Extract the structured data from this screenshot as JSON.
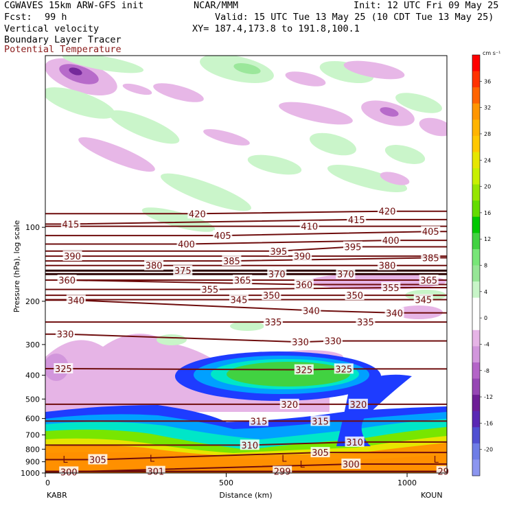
{
  "header": {
    "model": "CGWAVES 15km ARW-GFS init",
    "center": "NCAR/MMM",
    "init": "Init: 12 UTC Fri 09 May 25",
    "fcst_label": "Fcst:",
    "fcst_value": "99 h",
    "valid": "Valid: 15 UTC Tue 13 May 25 (10 CDT Tue 13 May 25)",
    "field1": "Vertical velocity",
    "field2": "Boundary Layer Tracer",
    "field3": "Potential Temperature",
    "xy": "XY= 187.4,173.8 to 191.8,100.1"
  },
  "colors": {
    "theta": "#6e0c0c",
    "field3_text": "#8b1a1a",
    "positive_w": [
      "#ffffff",
      "#c8f5c8",
      "#96e696",
      "#41d241",
      "#00c800",
      "#96e600",
      "#e6e600",
      "#ffc800",
      "#ff9600",
      "#ff6400",
      "#ff3200",
      "#ff0000"
    ],
    "negative_w": [
      "#ffffff",
      "#e6b4e6",
      "#d296dc",
      "#b464c8",
      "#9646b4",
      "#6e1e96",
      "#5a28b4",
      "#5050d2",
      "#6e7de6",
      "#8c96f0"
    ]
  },
  "chart_data": {
    "type": "cross-section",
    "ylabel": "Pressure (hPa), log scale",
    "xlabel": "Distance (km)",
    "xlim": [
      0,
      1110
    ],
    "ylim": [
      1000,
      20
    ],
    "yscale": "log",
    "x_ticks": [
      "0",
      "500",
      "1000"
    ],
    "x_tick_values": [
      0,
      500,
      1000
    ],
    "y_ticks": [
      "100",
      "200",
      "300",
      "400",
      "500",
      "600",
      "700",
      "800",
      "900",
      "1000"
    ],
    "y_tick_values": [
      100,
      200,
      300,
      400,
      500,
      600,
      700,
      800,
      900,
      1000
    ],
    "left_endpoint": "KABR",
    "right_endpoint": "KOUN",
    "colorbar": {
      "units": "cm s⁻¹",
      "ticks": [
        "36",
        "32",
        "28",
        "24",
        "20",
        "16",
        "12",
        "8",
        "4",
        "0",
        "-4",
        "-8",
        "-12",
        "-16",
        "-20"
      ],
      "tick_values": [
        36,
        32,
        28,
        24,
        20,
        16,
        12,
        8,
        4,
        0,
        -4,
        -8,
        -12,
        -16,
        -20
      ]
    },
    "theta_labels": [
      {
        "text": "415",
        "x": 70,
        "p": 97
      },
      {
        "text": "420",
        "x": 420,
        "p": 88
      },
      {
        "text": "415",
        "x": 860,
        "p": 93
      },
      {
        "text": "420",
        "x": 945,
        "p": 86
      },
      {
        "text": "410",
        "x": 730,
        "p": 99
      },
      {
        "text": "405",
        "x": 490,
        "p": 108
      },
      {
        "text": "405",
        "x": 1065,
        "p": 104
      },
      {
        "text": "400",
        "x": 390,
        "p": 117
      },
      {
        "text": "400",
        "x": 955,
        "p": 113
      },
      {
        "text": "395",
        "x": 645,
        "p": 125
      },
      {
        "text": "395",
        "x": 850,
        "p": 120
      },
      {
        "text": "390",
        "x": 75,
        "p": 131
      },
      {
        "text": "390",
        "x": 710,
        "p": 131
      },
      {
        "text": "385",
        "x": 515,
        "p": 137
      },
      {
        "text": "385",
        "x": 1065,
        "p": 133
      },
      {
        "text": "380",
        "x": 300,
        "p": 143
      },
      {
        "text": "380",
        "x": 945,
        "p": 143
      },
      {
        "text": "375",
        "x": 380,
        "p": 150
      },
      {
        "text": "370",
        "x": 640,
        "p": 155
      },
      {
        "text": "370",
        "x": 830,
        "p": 155
      },
      {
        "text": "365",
        "x": 545,
        "p": 164
      },
      {
        "text": "365",
        "x": 1060,
        "p": 164
      },
      {
        "text": "360",
        "x": 60,
        "p": 164
      },
      {
        "text": "360",
        "x": 715,
        "p": 171
      },
      {
        "text": "355",
        "x": 455,
        "p": 179
      },
      {
        "text": "355",
        "x": 955,
        "p": 176
      },
      {
        "text": "350",
        "x": 625,
        "p": 189
      },
      {
        "text": "350",
        "x": 855,
        "p": 189
      },
      {
        "text": "345",
        "x": 535,
        "p": 197
      },
      {
        "text": "345",
        "x": 1045,
        "p": 197
      },
      {
        "text": "340",
        "x": 85,
        "p": 198
      },
      {
        "text": "340",
        "x": 735,
        "p": 218
      },
      {
        "text": "340",
        "x": 965,
        "p": 223
      },
      {
        "text": "335",
        "x": 630,
        "p": 243
      },
      {
        "text": "335",
        "x": 885,
        "p": 243
      },
      {
        "text": "330",
        "x": 55,
        "p": 272
      },
      {
        "text": "330",
        "x": 705,
        "p": 293
      },
      {
        "text": "330",
        "x": 795,
        "p": 290
      },
      {
        "text": "325",
        "x": 50,
        "p": 376
      },
      {
        "text": "325",
        "x": 715,
        "p": 380
      },
      {
        "text": "325",
        "x": 825,
        "p": 377
      },
      {
        "text": "320",
        "x": 675,
        "p": 525
      },
      {
        "text": "320",
        "x": 865,
        "p": 525
      },
      {
        "text": "315",
        "x": 590,
        "p": 615
      },
      {
        "text": "315",
        "x": 760,
        "p": 615
      },
      {
        "text": "310",
        "x": 565,
        "p": 770
      },
      {
        "text": "310",
        "x": 855,
        "p": 748
      },
      {
        "text": "305",
        "x": 145,
        "p": 882
      },
      {
        "text": "305",
        "x": 760,
        "p": 825
      },
      {
        "text": "300",
        "x": 65,
        "p": 990
      },
      {
        "text": "300",
        "x": 845,
        "p": 920
      },
      {
        "text": "301",
        "x": 305,
        "p": 985
      },
      {
        "text": "299",
        "x": 655,
        "p": 985
      },
      {
        "text": "29",
        "x": 1100,
        "p": 985
      }
    ],
    "l_markers": [
      {
        "text": "L",
        "x": 55,
        "p": 880
      },
      {
        "text": "L",
        "x": 295,
        "p": 870
      },
      {
        "text": "L",
        "x": 660,
        "p": 870
      },
      {
        "text": "L",
        "x": 710,
        "p": 920
      },
      {
        "text": "L",
        "x": 1080,
        "p": 880
      }
    ]
  }
}
